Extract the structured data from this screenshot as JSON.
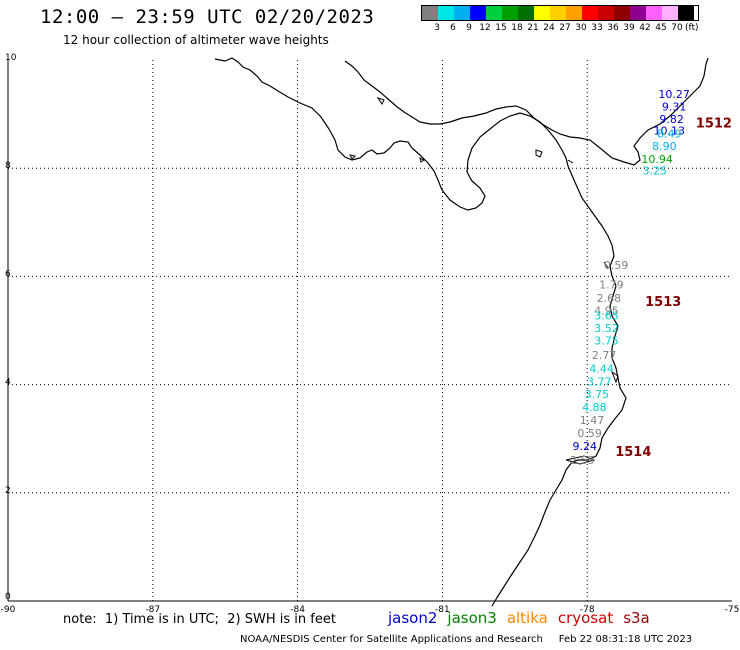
{
  "title": "12:00 – 23:59 UTC 02/20/2023",
  "subtitle": "12 hour collection of altimeter wave heights",
  "legend": {
    "colors": [
      "#808080",
      "#00e5e5",
      "#00b0f0",
      "#0000ff",
      "#00d040",
      "#00a000",
      "#007000",
      "#ffff00",
      "#ffd000",
      "#ffa000",
      "#ff0000",
      "#c80000",
      "#900000",
      "#900090",
      "#ff60ff",
      "#ffb0ff",
      "#000000"
    ],
    "labels": [
      "3",
      "6",
      "9",
      "12",
      "15",
      "18",
      "21",
      "24",
      "27",
      "30",
      "33",
      "36",
      "39",
      "42",
      "45",
      "70"
    ],
    "unit": "(ft)"
  },
  "axes": {
    "x_ticks": [
      "-90",
      "-87",
      "-84",
      "-81",
      "-78",
      "-75"
    ],
    "y_ticks": [
      "10",
      "8",
      "6",
      "4",
      "2",
      "0"
    ]
  },
  "readings": [
    {
      "value": "10.27",
      "color": "#0000cc",
      "lon": -76.2,
      "lat": 9.3
    },
    {
      "value": "9.31",
      "color": "#0000cc",
      "lon": -76.2,
      "lat": 9.07
    },
    {
      "value": "9.82",
      "color": "#0000cc",
      "lon": -76.25,
      "lat": 8.84
    },
    {
      "value": "10.13",
      "color": "#0000cc",
      "lon": -76.3,
      "lat": 8.62
    },
    {
      "value": "8.49",
      "color": "#00b0f0",
      "lon": -76.3,
      "lat": 8.57
    },
    {
      "value": "8.90",
      "color": "#00b0f0",
      "lon": -76.4,
      "lat": 8.34
    },
    {
      "value": "10.94",
      "color": "#00a000",
      "lon": -76.55,
      "lat": 8.1
    },
    {
      "value": "3.25",
      "color": "#00cccc",
      "lon": -76.6,
      "lat": 7.88
    },
    {
      "value": "0.59",
      "color": "#808080",
      "lon": -77.4,
      "lat": 6.14
    },
    {
      "value": "1.79",
      "color": "#808080",
      "lon": -77.5,
      "lat": 5.78
    },
    {
      "value": "2.68",
      "color": "#808080",
      "lon": -77.55,
      "lat": 5.53
    },
    {
      "value": "4.95",
      "color": "#808080",
      "lon": -77.6,
      "lat": 5.3
    },
    {
      "value": "3.65",
      "color": "#00cccc",
      "lon": -77.6,
      "lat": 5.2
    },
    {
      "value": "3.52",
      "color": "#00cccc",
      "lon": -77.6,
      "lat": 4.97
    },
    {
      "value": "3.75",
      "color": "#00cccc",
      "lon": -77.6,
      "lat": 4.74
    },
    {
      "value": "2.77",
      "color": "#808080",
      "lon": -77.65,
      "lat": 4.47
    },
    {
      "value": "4.44",
      "color": "#00cccc",
      "lon": -77.7,
      "lat": 4.22
    },
    {
      "value": "3.77",
      "color": "#00cccc",
      "lon": -77.75,
      "lat": 3.98
    },
    {
      "value": "3.75",
      "color": "#00cccc",
      "lon": -77.8,
      "lat": 3.75
    },
    {
      "value": "4.88",
      "color": "#00cccc",
      "lon": -77.85,
      "lat": 3.51
    },
    {
      "value": "1.47",
      "color": "#808080",
      "lon": -77.9,
      "lat": 3.27
    },
    {
      "value": "0.59",
      "color": "#808080",
      "lon": -77.95,
      "lat": 3.03
    },
    {
      "value": "9.24",
      "color": "#0000cc",
      "lon": -78.05,
      "lat": 2.79
    },
    {
      "value": "2.55",
      "color": "#808080",
      "lon": -78.1,
      "lat": 2.53
    }
  ],
  "passes": [
    {
      "label": "1512",
      "lon": -75.75,
      "lat": 8.75
    },
    {
      "label": "1513",
      "lon": -76.8,
      "lat": 5.45
    },
    {
      "label": "1514",
      "lon": -77.42,
      "lat": 2.68
    }
  ],
  "note": "note:  1) Time is in UTC;  2) SWH is in feet",
  "missions": [
    {
      "name": "jason2",
      "color": "#0000cc"
    },
    {
      "name": "jason3",
      "color": "#008000"
    },
    {
      "name": "altika",
      "color": "#ff8800"
    },
    {
      "name": "cryosat",
      "color": "#cc0000"
    },
    {
      "name": "s3a",
      "color": "#990000"
    }
  ],
  "credit": "NOAA/NESDIS Center for Satellite Applications and Research     Feb 22 08:31:18 UTC 2023"
}
